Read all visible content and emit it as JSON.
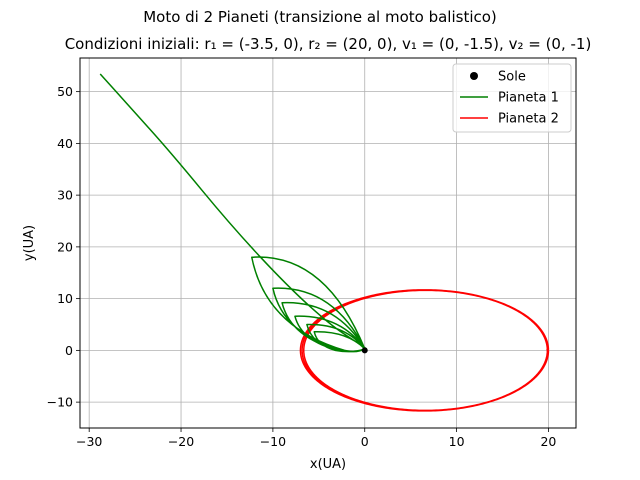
{
  "chart_data": {
    "type": "line",
    "suptitle": "Moto di 2 Pianeti (transizione al moto balistico)",
    "title": "Condizioni iniziali: r₁ = (-3.5, 0), r₂ = (20, 0), v₁ = (0, -1.5), v₂ = (0, -1)",
    "xlabel": "x(UA)",
    "ylabel": "y(UA)",
    "xlim": [
      -31,
      23
    ],
    "ylim": [
      -15,
      56.5
    ],
    "xticks": [
      -30,
      -20,
      -10,
      0,
      10,
      20
    ],
    "yticks": [
      -10,
      0,
      10,
      20,
      30,
      40,
      50
    ],
    "grid": true,
    "legend_position": "top-right",
    "series": [
      {
        "name": "Sole",
        "kind": "marker",
        "color": "#000000",
        "points": [
          [
            0,
            0
          ]
        ]
      },
      {
        "name": "Pianeta 1",
        "kind": "line",
        "color": "#008000",
        "loops": [
          {
            "peak": [
              -12.3,
              18.0
            ],
            "peri": [
              -2.2,
              0
            ]
          },
          {
            "peak": [
              -10.0,
              12.0
            ],
            "peri": [
              -2.4,
              0
            ]
          },
          {
            "peak": [
              -9.0,
              9.2
            ],
            "peri": [
              -2.6,
              0
            ]
          },
          {
            "peak": [
              -7.6,
              6.6
            ],
            "peri": [
              -2.8,
              0
            ]
          },
          {
            "peak": [
              -6.3,
              5.0
            ],
            "peri": [
              -3.0,
              0
            ]
          },
          {
            "peak": [
              -5.5,
              3.6
            ],
            "peri": [
              -3.2,
              0
            ]
          }
        ],
        "escape": [
          [
            0.2,
            0.3
          ],
          [
            -1.0,
            1.7
          ],
          [
            -3.8,
            5.0
          ],
          [
            -8.4,
            12.4
          ],
          [
            -14.5,
            24.0
          ],
          [
            -21.0,
            38.0
          ],
          [
            -25.8,
            47.5
          ],
          [
            -28.8,
            53.4
          ]
        ]
      },
      {
        "name": "Pianeta 2",
        "kind": "line",
        "color": "#ff0000",
        "ellipse": {
          "cx": 6.5,
          "cy": 0,
          "a": 13.5,
          "b": 11.7,
          "orbits": 3
        }
      }
    ]
  }
}
